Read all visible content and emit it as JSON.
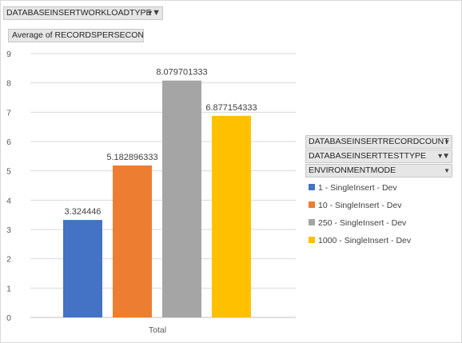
{
  "filter": {
    "label": "DATABASEINSERTWORKLOADTYPE",
    "dropdown_icon": "dropdown-arrow",
    "filter_icon": "funnel-filter"
  },
  "value_field": {
    "label": "Average of RECORDSPERSECOND"
  },
  "legend": {
    "fields": [
      {
        "label": "DATABASEINSERTRECORDCOUNT",
        "icon": "dropdown-arrow"
      },
      {
        "label": "DATABASEINSERTTESTTYPE",
        "icon": "funnel-filter"
      },
      {
        "label": "ENVIRONMENTMODE",
        "icon": "dropdown-arrow"
      }
    ],
    "items": [
      {
        "label": "1 - SingleInsert - Dev",
        "color": "#4472c4"
      },
      {
        "label": "10 - SingleInsert - Dev",
        "color": "#ed7d31"
      },
      {
        "label": "250 - SingleInsert - Dev",
        "color": "#a5a5a5"
      },
      {
        "label": "1000 - SingleInsert - Dev",
        "color": "#ffc000"
      }
    ]
  },
  "chart_data": {
    "type": "bar",
    "categories": [
      "Total"
    ],
    "series": [
      {
        "name": "1 - SingleInsert - Dev",
        "values": [
          3.324446
        ],
        "color": "#4472c4",
        "data_label": "3.324446"
      },
      {
        "name": "10 - SingleInsert - Dev",
        "values": [
          5.182896333
        ],
        "color": "#ed7d31",
        "data_label": "5.182896333"
      },
      {
        "name": "250 - SingleInsert - Dev",
        "values": [
          8.079701333
        ],
        "color": "#a5a5a5",
        "data_label": "8.079701333"
      },
      {
        "name": "1000 - SingleInsert - Dev",
        "values": [
          6.877154333
        ],
        "color": "#ffc000",
        "data_label": "6.877154333"
      }
    ],
    "ylim": [
      0,
      9
    ],
    "y_ticks": [
      "0",
      "1",
      "2",
      "3",
      "4",
      "5",
      "6",
      "7",
      "8",
      "9"
    ],
    "grid": true,
    "legend_position": "right"
  }
}
